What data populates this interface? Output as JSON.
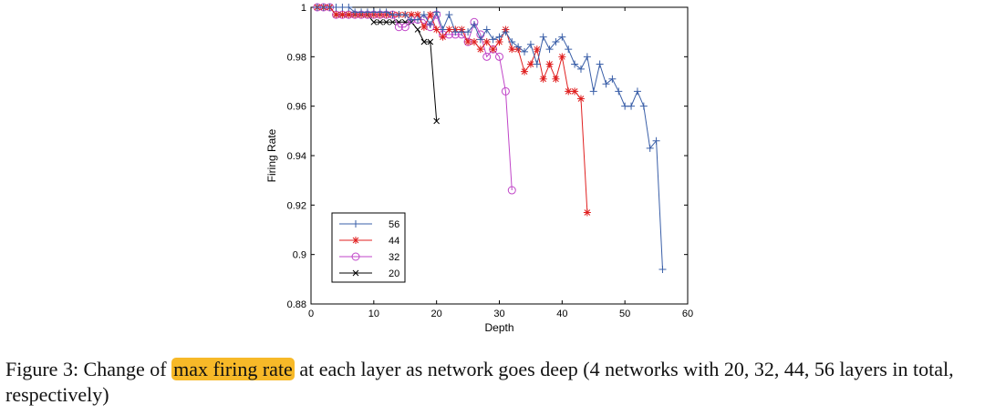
{
  "caption": {
    "prefix": "Figure 3: Change of ",
    "highlight": "max firing rate",
    "suffix": " at each layer as network goes deep (4 networks with 20, 32, 44, 56 layers in total, respectively)"
  },
  "colors": {
    "highlight": "#f7b928"
  },
  "chart_data": {
    "type": "line",
    "title": "",
    "xlabel": "Depth",
    "ylabel": "Firing Rate",
    "xlim": [
      0,
      60
    ],
    "ylim": [
      0.88,
      1.0
    ],
    "xticks": [
      0,
      10,
      20,
      30,
      40,
      50,
      60
    ],
    "yticks": [
      0.88,
      0.9,
      0.92,
      0.94,
      0.96,
      0.98,
      1.0
    ],
    "ytick_labels": [
      "0.88",
      "0.9",
      "0.92",
      "0.94",
      "0.96",
      "0.98",
      "1"
    ],
    "grid": false,
    "legend_position": "bottom-left",
    "series": [
      {
        "name": "56",
        "color": "#3a5fa8",
        "marker": "plus",
        "x": [
          1,
          2,
          3,
          4,
          5,
          6,
          7,
          8,
          9,
          10,
          11,
          12,
          13,
          14,
          15,
          16,
          17,
          18,
          19,
          20,
          21,
          22,
          23,
          24,
          25,
          26,
          27,
          28,
          29,
          30,
          31,
          32,
          33,
          34,
          35,
          36,
          37,
          38,
          39,
          40,
          41,
          42,
          43,
          44,
          45,
          46,
          47,
          48,
          49,
          50,
          51,
          52,
          53,
          54,
          55,
          56
        ],
        "y": [
          1.0,
          1.0,
          1.0,
          1.0,
          1.0,
          1.0,
          0.998,
          0.998,
          0.998,
          0.998,
          0.998,
          0.998,
          0.997,
          0.997,
          0.997,
          0.995,
          0.995,
          0.997,
          0.993,
          0.998,
          0.991,
          0.997,
          0.99,
          0.99,
          0.99,
          0.993,
          0.987,
          0.991,
          0.987,
          0.988,
          0.99,
          0.986,
          0.984,
          0.982,
          0.985,
          0.977,
          0.988,
          0.983,
          0.986,
          0.988,
          0.983,
          0.977,
          0.975,
          0.98,
          0.966,
          0.977,
          0.969,
          0.971,
          0.966,
          0.96,
          0.96,
          0.966,
          0.96,
          0.943,
          0.946,
          0.894
        ]
      },
      {
        "name": "44",
        "color": "#e02020",
        "marker": "star",
        "x": [
          1,
          2,
          3,
          4,
          5,
          6,
          7,
          8,
          9,
          10,
          11,
          12,
          13,
          14,
          15,
          16,
          17,
          18,
          19,
          20,
          21,
          22,
          23,
          24,
          25,
          26,
          27,
          28,
          29,
          30,
          31,
          32,
          33,
          34,
          35,
          36,
          37,
          38,
          39,
          40,
          41,
          42,
          43,
          44
        ],
        "y": [
          1.0,
          1.0,
          1.0,
          0.997,
          0.997,
          0.997,
          0.997,
          0.997,
          0.997,
          0.997,
          0.997,
          0.997,
          0.997,
          0.997,
          0.997,
          0.997,
          0.997,
          0.992,
          0.997,
          0.991,
          0.988,
          0.991,
          0.991,
          0.991,
          0.986,
          0.986,
          0.983,
          0.986,
          0.983,
          0.986,
          0.991,
          0.983,
          0.983,
          0.974,
          0.977,
          0.983,
          0.971,
          0.977,
          0.971,
          0.98,
          0.966,
          0.966,
          0.963,
          0.917
        ]
      },
      {
        "name": "32",
        "color": "#c045c8",
        "marker": "circle",
        "x": [
          1,
          2,
          3,
          4,
          5,
          6,
          7,
          8,
          9,
          10,
          11,
          12,
          13,
          14,
          15,
          16,
          17,
          18,
          19,
          20,
          21,
          22,
          23,
          24,
          25,
          26,
          27,
          28,
          29,
          30,
          31,
          32
        ],
        "y": [
          1.0,
          1.0,
          1.0,
          0.997,
          0.997,
          0.997,
          0.997,
          0.997,
          0.997,
          0.997,
          0.997,
          0.997,
          0.997,
          0.992,
          0.992,
          0.995,
          0.995,
          0.995,
          0.992,
          0.997,
          0.989,
          0.989,
          0.989,
          0.989,
          0.986,
          0.994,
          0.989,
          0.98,
          0.983,
          0.98,
          0.966,
          0.926
        ]
      },
      {
        "name": "20",
        "color": "#000000",
        "marker": "x",
        "x": [
          1,
          2,
          3,
          4,
          5,
          6,
          7,
          8,
          9,
          10,
          11,
          12,
          13,
          14,
          15,
          16,
          17,
          18,
          19,
          20
        ],
        "y": [
          1.0,
          1.0,
          1.0,
          0.997,
          0.997,
          0.997,
          0.997,
          0.997,
          0.997,
          0.994,
          0.994,
          0.994,
          0.994,
          0.994,
          0.994,
          0.994,
          0.991,
          0.986,
          0.986,
          0.954
        ]
      }
    ]
  }
}
